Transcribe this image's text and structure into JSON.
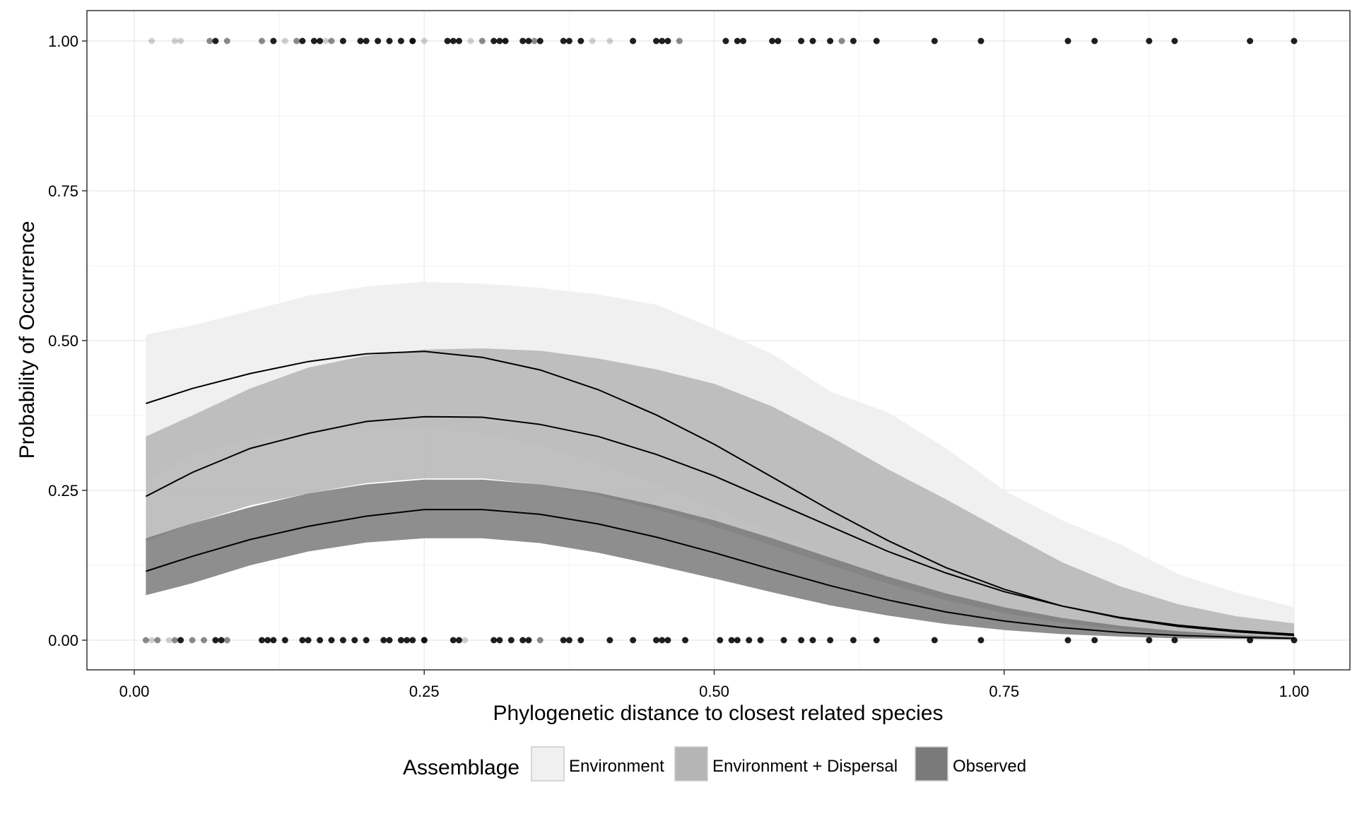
{
  "chart_data": {
    "type": "line",
    "title": "",
    "xlabel": "Phylogenetic distance to closest related species",
    "ylabel": "Probability of Occurrence",
    "xlim": [
      0,
      1
    ],
    "ylim": [
      0,
      1
    ],
    "xticks": [
      0,
      0.25,
      0.5,
      0.75,
      1
    ],
    "xtick_labels": [
      "0.00",
      "0.25",
      "0.50",
      "0.75",
      "1.00"
    ],
    "yticks": [
      0,
      0.25,
      0.5,
      0.75,
      1
    ],
    "ytick_labels": [
      "0.00",
      "0.25",
      "0.50",
      "0.75",
      "1.00"
    ],
    "grid": true,
    "legend": {
      "title": "Assemblage",
      "position": "bottom",
      "entries": [
        "Environment",
        "Environment + Dispersal",
        "Observed"
      ]
    },
    "x": [
      0.01,
      0.05,
      0.1,
      0.15,
      0.2,
      0.25,
      0.3,
      0.35,
      0.4,
      0.45,
      0.5,
      0.55,
      0.6,
      0.65,
      0.7,
      0.75,
      0.8,
      0.85,
      0.9,
      0.95,
      1.0
    ],
    "series": [
      {
        "name": "Environment",
        "color": "#f0f0f0",
        "fit": [
          0.395,
          0.42,
          0.445,
          0.465,
          0.478,
          0.482,
          0.472,
          0.451,
          0.418,
          0.376,
          0.327,
          0.272,
          0.217,
          0.166,
          0.121,
          0.085,
          0.057,
          0.037,
          0.023,
          0.014,
          0.008
        ],
        "upper": [
          0.51,
          0.525,
          0.55,
          0.575,
          0.59,
          0.598,
          0.595,
          0.588,
          0.577,
          0.56,
          0.52,
          0.478,
          0.415,
          0.38,
          0.32,
          0.25,
          0.2,
          0.16,
          0.11,
          0.08,
          0.055
        ],
        "lower": [
          0.265,
          0.31,
          0.335,
          0.345,
          0.355,
          0.355,
          0.345,
          0.325,
          0.295,
          0.26,
          0.22,
          0.18,
          0.14,
          0.1,
          0.07,
          0.046,
          0.03,
          0.018,
          0.01,
          0.006,
          0.003
        ]
      },
      {
        "name": "Environment + Dispersal",
        "color": "#b5b5b5",
        "fit": [
          0.24,
          0.28,
          0.32,
          0.345,
          0.365,
          0.373,
          0.372,
          0.36,
          0.34,
          0.31,
          0.274,
          0.232,
          0.19,
          0.148,
          0.112,
          0.081,
          0.057,
          0.038,
          0.025,
          0.016,
          0.01
        ],
        "upper": [
          0.34,
          0.375,
          0.42,
          0.455,
          0.475,
          0.485,
          0.487,
          0.483,
          0.47,
          0.452,
          0.428,
          0.39,
          0.34,
          0.285,
          0.235,
          0.182,
          0.13,
          0.09,
          0.06,
          0.04,
          0.028
        ],
        "lower": [
          0.165,
          0.195,
          0.225,
          0.245,
          0.262,
          0.27,
          0.27,
          0.26,
          0.242,
          0.218,
          0.19,
          0.158,
          0.125,
          0.094,
          0.066,
          0.045,
          0.029,
          0.018,
          0.011,
          0.006,
          0.003
        ]
      },
      {
        "name": "Observed",
        "color": "#7a7a7a",
        "fit": [
          0.115,
          0.14,
          0.168,
          0.19,
          0.207,
          0.218,
          0.218,
          0.21,
          0.194,
          0.172,
          0.146,
          0.118,
          0.091,
          0.067,
          0.047,
          0.032,
          0.021,
          0.013,
          0.008,
          0.005,
          0.003
        ],
        "upper": [
          0.17,
          0.195,
          0.222,
          0.245,
          0.26,
          0.268,
          0.268,
          0.26,
          0.246,
          0.225,
          0.2,
          0.17,
          0.138,
          0.106,
          0.078,
          0.055,
          0.037,
          0.024,
          0.015,
          0.009,
          0.005
        ],
        "lower": [
          0.075,
          0.095,
          0.125,
          0.148,
          0.163,
          0.17,
          0.17,
          0.162,
          0.146,
          0.125,
          0.103,
          0.08,
          0.058,
          0.041,
          0.027,
          0.017,
          0.01,
          0.006,
          0.003,
          0.002,
          0.001
        ]
      }
    ],
    "points_top": {
      "light": [
        0.015,
        0.035,
        0.04,
        0.13,
        0.165,
        0.25,
        0.29,
        0.32,
        0.395,
        0.41
      ],
      "medium": [
        0.065,
        0.08,
        0.11,
        0.14,
        0.17,
        0.24,
        0.3,
        0.345,
        0.47,
        0.61
      ],
      "dark": [
        0.07,
        0.12,
        0.145,
        0.155,
        0.16,
        0.18,
        0.195,
        0.2,
        0.21,
        0.22,
        0.23,
        0.24,
        0.27,
        0.275,
        0.28,
        0.31,
        0.315,
        0.32,
        0.335,
        0.34,
        0.35,
        0.37,
        0.375,
        0.385,
        0.43,
        0.45,
        0.455,
        0.46,
        0.51,
        0.52,
        0.525,
        0.55,
        0.555,
        0.575,
        0.585,
        0.6,
        0.62,
        0.64,
        0.69,
        0.73,
        0.805,
        0.828,
        0.875,
        0.897,
        0.962,
        1.0
      ]
    },
    "points_bottom": {
      "light": [
        0.015,
        0.03,
        0.285
      ],
      "medium": [
        0.01,
        0.02,
        0.035,
        0.05,
        0.06,
        0.08,
        0.25,
        0.35
      ],
      "dark": [
        0.04,
        0.07,
        0.075,
        0.11,
        0.115,
        0.12,
        0.13,
        0.145,
        0.15,
        0.16,
        0.17,
        0.18,
        0.19,
        0.2,
        0.215,
        0.22,
        0.23,
        0.235,
        0.24,
        0.25,
        0.275,
        0.28,
        0.31,
        0.315,
        0.325,
        0.335,
        0.34,
        0.37,
        0.375,
        0.385,
        0.41,
        0.43,
        0.45,
        0.455,
        0.46,
        0.475,
        0.505,
        0.515,
        0.52,
        0.53,
        0.54,
        0.56,
        0.575,
        0.585,
        0.6,
        0.62,
        0.64,
        0.69,
        0.73,
        0.805,
        0.828,
        0.875,
        0.897,
        0.962,
        1.0
      ]
    }
  }
}
